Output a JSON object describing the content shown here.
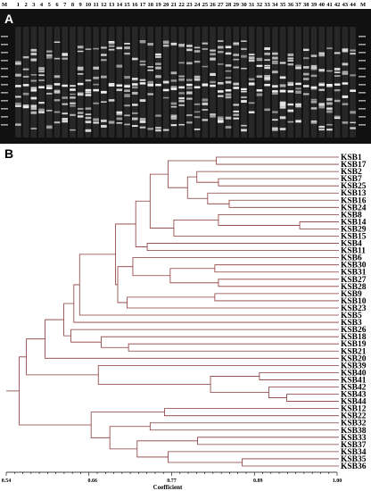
{
  "panel_a": {
    "letter": "A",
    "marker_left": "M",
    "marker_right": "M",
    "lane_labels": [
      "1",
      "2",
      "3",
      "4",
      "5",
      "6",
      "7",
      "8",
      "9",
      "10",
      "11",
      "12",
      "13",
      "14",
      "15",
      "16",
      "17",
      "18",
      "19",
      "20",
      "21",
      "22",
      "23",
      "24",
      "25",
      "26",
      "27",
      "28",
      "29",
      "30",
      "31",
      "32",
      "33",
      "34",
      "35",
      "36",
      "37",
      "38",
      "39",
      "40",
      "41",
      "42",
      "43",
      "44"
    ]
  },
  "panel_b": {
    "letter": "B",
    "xlabel": "Coefficient"
  },
  "chart_data": {
    "type": "dendrogram",
    "xlabel": "Coefficient",
    "xlim": [
      0.54,
      1.0
    ],
    "xticks": [
      "0.54",
      "0.66",
      "0.77",
      "0.89",
      "1.00"
    ],
    "leaves": [
      "KSB1",
      "KSB17",
      "KSB2",
      "KSB7",
      "KSB25",
      "KSB13",
      "KSB16",
      "KSB24",
      "KSB8",
      "KSB14",
      "KSB29",
      "KSB15",
      "KSB4",
      "KSB11",
      "KSB6",
      "KSB30",
      "KSB31",
      "KSB27",
      "KSB28",
      "KSB9",
      "KSB10",
      "KSB23",
      "KSB5",
      "KSB3",
      "KSB26",
      "KSB18",
      "KSB19",
      "KSB21",
      "KSB20",
      "KSB39",
      "KSB40",
      "KSB41",
      "KSB42",
      "KSB43",
      "KSB44",
      "KSB12",
      "KSB22",
      "KSB32",
      "KSB38",
      "KSB33",
      "KSB37",
      "KSB34",
      "KSB35",
      "KSB36"
    ],
    "link_color": "#8b3a3a"
  }
}
